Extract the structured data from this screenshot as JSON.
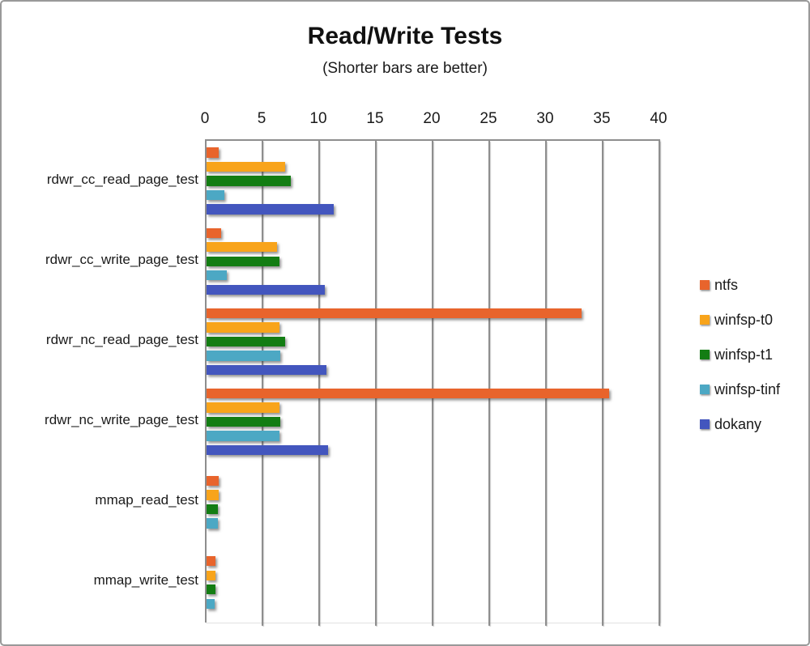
{
  "chart_data": {
    "type": "bar",
    "orientation": "horizontal",
    "title": "Read/Write Tests",
    "subtitle": "(Shorter bars are better)",
    "categories": [
      "rdwr_cc_read_page_test",
      "rdwr_cc_write_page_test",
      "rdwr_nc_read_page_test",
      "rdwr_nc_write_page_test",
      "mmap_read_test",
      "mmap_write_test"
    ],
    "series": [
      {
        "name": "ntfs",
        "color": "#E8642C",
        "values": [
          1.1,
          1.3,
          33.1,
          35.5,
          1.1,
          0.8
        ]
      },
      {
        "name": "winfsp-t0",
        "color": "#F8A41B",
        "values": [
          6.9,
          6.2,
          6.4,
          6.4,
          1.1,
          0.8
        ]
      },
      {
        "name": "winfsp-t1",
        "color": "#137D13",
        "values": [
          7.4,
          6.4,
          6.9,
          6.5,
          1.0,
          0.8
        ]
      },
      {
        "name": "winfsp-tinf",
        "color": "#4CA8C4",
        "values": [
          1.6,
          1.8,
          6.5,
          6.4,
          1.0,
          0.7
        ]
      },
      {
        "name": "dokany",
        "color": "#4356BE",
        "values": [
          11.2,
          10.4,
          10.6,
          10.7,
          null,
          null
        ]
      }
    ],
    "x_axis": {
      "position": "top",
      "min": 0,
      "max": 40,
      "tick_interval": 5,
      "ticks": [
        "0",
        "5",
        "10",
        "15",
        "20",
        "25",
        "30",
        "35",
        "40"
      ]
    },
    "legend_position": "right",
    "grid": true,
    "gridline_color": "#8e8e8e",
    "background_color": "#ffffff",
    "border_color": "#999999"
  }
}
